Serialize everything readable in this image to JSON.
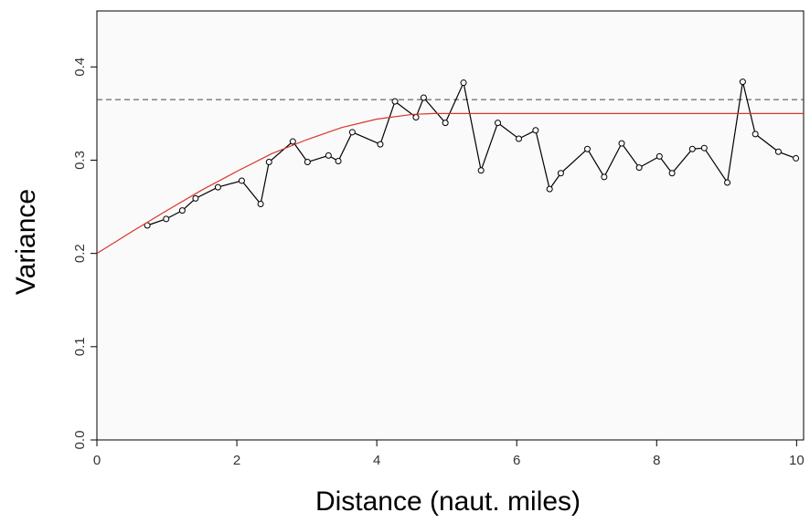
{
  "chart_data": {
    "type": "line",
    "xlabel": "Distance (naut. miles)",
    "ylabel": "Variance",
    "xlim": [
      0,
      10.1
    ],
    "ylim": [
      0,
      0.46
    ],
    "xticks": [
      0,
      2,
      4,
      6,
      8,
      10
    ],
    "yticks": [
      {
        "value": 0,
        "label": "0.0"
      },
      0.1,
      0.2,
      0.3,
      0.4
    ],
    "series": [
      {
        "color": "#000000",
        "marker": "circle",
        "x": [
          0.72,
          0.99,
          1.22,
          1.41,
          1.73,
          2.07,
          2.34,
          2.46,
          2.8,
          3.01,
          3.31,
          3.45,
          3.65,
          4.05,
          4.26,
          4.56,
          4.67,
          4.98,
          5.24,
          5.49,
          5.73,
          6.03,
          6.27,
          6.47,
          6.63,
          7.01,
          7.25,
          7.5,
          7.75,
          8.04,
          8.22,
          8.51,
          8.68,
          9.01,
          9.23,
          9.41,
          9.74,
          9.99
        ],
        "values": [
          0.23,
          0.237,
          0.246,
          0.259,
          0.271,
          0.278,
          0.253,
          0.298,
          0.32,
          0.298,
          0.305,
          0.299,
          0.33,
          0.317,
          0.363,
          0.346,
          0.367,
          0.34,
          0.383,
          0.289,
          0.34,
          0.323,
          0.332,
          0.269,
          0.286,
          0.312,
          0.282,
          0.318,
          0.292,
          0.304,
          0.286,
          0.312,
          0.313,
          0.276,
          0.384,
          0.328,
          0.309,
          0.302
        ]
      },
      {
        "color": "#d9352b",
        "marker": "none",
        "x": [
          0,
          0.5,
          1,
          1.5,
          2,
          2.5,
          3,
          3.5,
          4,
          4.5,
          4.8,
          10.1
        ],
        "values": [
          0.2,
          0.2234,
          0.246,
          0.268,
          0.288,
          0.307,
          0.322,
          0.335,
          0.344,
          0.349,
          0.35,
          0.35
        ]
      }
    ],
    "hline": {
      "value": 0.365,
      "color": "#444444",
      "dash": true
    },
    "grid": false
  }
}
